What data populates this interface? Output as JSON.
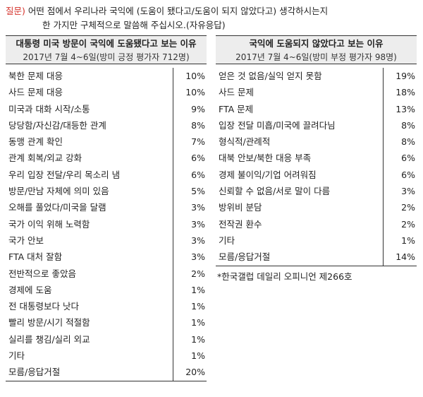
{
  "question": {
    "tag": "질문)",
    "line1": "어떤 점에서 우리나라 국익에 (도움이 됐다고/도움이 되지 않았다고) 생각하시는지",
    "line2": "한 가지만 구체적으로 말씀해 주십시오.(자유응답)"
  },
  "left_table": {
    "title": "대통령 미국 방문이 국익에 도움됐다고 보는 이유",
    "subtitle": "2017년 7월 4~6일(방미 긍정 평가자 712명)",
    "rows": [
      {
        "label": "북한 문제 대응",
        "value": "10%"
      },
      {
        "label": "사드 문제 대응",
        "value": "10%"
      },
      {
        "label": "미국과 대화 시작/소통",
        "value": "9%"
      },
      {
        "label": "당당함/자신감/대등한 관계",
        "value": "8%"
      },
      {
        "label": "동맹 관계 확인",
        "value": "7%"
      },
      {
        "label": "관계 회복/외교 강화",
        "value": "6%"
      },
      {
        "label": "우리 입장 전달/우리 목소리 냄",
        "value": "6%"
      },
      {
        "label": "방문/만남 자체에 의미 있음",
        "value": "5%"
      },
      {
        "label": "오해를 풀었다/미국을 달램",
        "value": "3%"
      },
      {
        "label": "국가 이익 위해 노력함",
        "value": "3%"
      },
      {
        "label": "국가 안보",
        "value": "3%"
      },
      {
        "label": "FTA 대처 잘함",
        "value": "3%"
      },
      {
        "label": "전반적으로 좋았음",
        "value": "2%"
      },
      {
        "label": "경제에 도움",
        "value": "1%"
      },
      {
        "label": "전 대통령보다 낫다",
        "value": "1%"
      },
      {
        "label": "빨리 방문/시기 적절함",
        "value": "1%"
      },
      {
        "label": "실리를 챙김/실리 외교",
        "value": "1%"
      },
      {
        "label": "기타",
        "value": "1%"
      },
      {
        "label": "모름/응답거절",
        "value": "20%"
      }
    ]
  },
  "right_table": {
    "title": "국익에 도움되지 않았다고 보는 이유",
    "subtitle": "2017년 7월 4~6일(방미 부정 평가자 98명)",
    "rows": [
      {
        "label": "얻은 것 없음/실익 얻지 못함",
        "value": "19%"
      },
      {
        "label": "사드 문제",
        "value": "18%"
      },
      {
        "label": "FTA 문제",
        "value": "13%"
      },
      {
        "label": "입장 전달 미흡/미국에 끌려다님",
        "value": "8%"
      },
      {
        "label": "형식적/관례적",
        "value": "8%"
      },
      {
        "label": "대북 안보/북한 대응 부족",
        "value": "6%"
      },
      {
        "label": "경제 불이익/기업 어려워짐",
        "value": "6%"
      },
      {
        "label": "신뢰할 수 없음/서로 말이 다름",
        "value": "3%"
      },
      {
        "label": "방위비 분담",
        "value": "2%"
      },
      {
        "label": "전작권 환수",
        "value": "2%"
      },
      {
        "label": "기타",
        "value": "1%"
      },
      {
        "label": "모름/응답거절",
        "value": "14%"
      }
    ],
    "note": "*한국갤럽 데일리 오피니언 제266호"
  }
}
